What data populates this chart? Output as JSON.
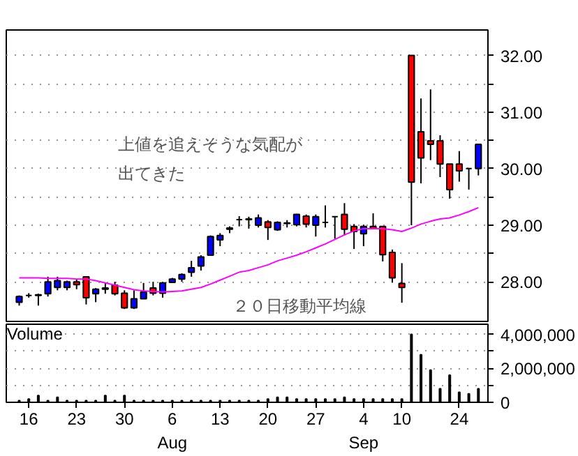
{
  "chart_data": [
    {
      "type": "candlestick",
      "categories": [
        null,
        null,
        null,
        null,
        null,
        null,
        null,
        null,
        null,
        null,
        null,
        null,
        null,
        null,
        null,
        null,
        null,
        null,
        null,
        null,
        null,
        null,
        null,
        null,
        null,
        null,
        null,
        null,
        null,
        null,
        null,
        null,
        null,
        null,
        null,
        null,
        null,
        null,
        null,
        null,
        null,
        null,
        null,
        null,
        null,
        null,
        null,
        null,
        null
      ],
      "ohlc": [
        [
          27.64,
          27.76,
          27.58,
          27.74
        ],
        [
          27.76,
          27.8,
          27.72,
          27.76
        ],
        [
          27.76,
          27.79,
          27.58,
          27.77
        ],
        [
          27.79,
          28.09,
          27.74,
          28.0
        ],
        [
          27.9,
          28.09,
          27.85,
          28.02
        ],
        [
          27.9,
          28.02,
          27.85,
          28.0
        ],
        [
          28.0,
          28.05,
          27.87,
          27.95
        ],
        [
          28.09,
          28.09,
          27.6,
          27.72
        ],
        [
          27.79,
          27.89,
          27.64,
          27.87
        ],
        [
          27.87,
          27.98,
          27.79,
          27.89
        ],
        [
          27.94,
          28.0,
          27.76,
          27.79
        ],
        [
          27.8,
          27.85,
          27.52,
          27.54
        ],
        [
          27.54,
          27.85,
          27.52,
          27.7
        ],
        [
          27.7,
          27.98,
          27.7,
          27.82
        ],
        [
          27.89,
          28.0,
          27.76,
          27.8
        ],
        [
          27.8,
          28.0,
          27.72,
          27.98
        ],
        [
          27.99,
          28.07,
          27.98,
          28.05
        ],
        [
          28.05,
          28.15,
          28.0,
          28.13
        ],
        [
          28.17,
          28.37,
          28.09,
          28.25
        ],
        [
          28.28,
          28.47,
          28.2,
          28.44
        ],
        [
          28.47,
          28.82,
          28.46,
          28.8
        ],
        [
          28.74,
          28.86,
          28.63,
          28.82
        ],
        [
          28.93,
          28.98,
          28.86,
          28.95
        ],
        [
          29.1,
          29.16,
          28.98,
          29.1
        ],
        [
          29.1,
          29.15,
          28.94,
          29.11
        ],
        [
          29.0,
          29.19,
          28.96,
          29.13
        ],
        [
          29.06,
          29.09,
          28.74,
          28.96
        ],
        [
          28.92,
          29.07,
          28.9,
          29.05
        ],
        [
          29.03,
          29.09,
          28.96,
          29.04
        ],
        [
          29.01,
          29.2,
          28.98,
          29.19
        ],
        [
          29.16,
          29.19,
          28.96,
          29.02
        ],
        [
          29.0,
          29.19,
          28.8,
          29.15
        ],
        [
          29.05,
          29.35,
          28.96,
          29.05
        ],
        [
          29.15,
          29.15,
          28.76,
          29.15
        ],
        [
          29.19,
          29.39,
          28.82,
          28.93
        ],
        [
          28.98,
          29.02,
          28.58,
          28.89
        ],
        [
          28.85,
          29.01,
          28.63,
          28.98
        ],
        [
          28.98,
          29.21,
          28.93,
          28.94
        ],
        [
          28.98,
          28.98,
          28.36,
          28.48
        ],
        [
          28.52,
          28.57,
          27.99,
          28.07
        ],
        [
          27.97,
          28.33,
          27.63,
          27.9
        ],
        [
          32.0,
          32.0,
          29.0,
          29.76
        ],
        [
          30.65,
          31.24,
          29.74,
          30.19
        ],
        [
          30.49,
          31.4,
          30.15,
          30.43
        ],
        [
          30.49,
          30.59,
          29.85,
          30.08
        ],
        [
          30.08,
          30.08,
          29.47,
          29.63
        ],
        [
          30.08,
          30.31,
          29.77,
          29.96
        ],
        [
          30.0,
          30.0,
          29.63,
          30.0
        ],
        [
          30.0,
          30.43,
          29.88,
          30.43
        ]
      ],
      "colors": [
        "#0000ff",
        "#000000",
        "#000000",
        "#0000ff",
        "#0000ff",
        "#0000ff",
        "#ff0000",
        "#ff0000",
        "#0000ff",
        "#0000ff",
        "#ff0000",
        "#ff0000",
        "#0000ff",
        "#0000ff",
        "#ff0000",
        "#0000ff",
        "#0000ff",
        "#0000ff",
        "#0000ff",
        "#0000ff",
        "#0000ff",
        "#0000ff",
        "#000000",
        "#000000",
        "#000000",
        "#0000ff",
        "#ff0000",
        "#0000ff",
        "#000000",
        "#0000ff",
        "#ff0000",
        "#0000ff",
        "#000000",
        "#000000",
        "#ff0000",
        "#ff0000",
        "#0000ff",
        "#ff0000",
        "#ff0000",
        "#ff0000",
        "#ff0000",
        "#ff0000",
        "#ff0000",
        "#ff0000",
        "#ff0000",
        "#ff0000",
        "#ff0000",
        "#000000",
        "#0000ff"
      ],
      "series": [
        {
          "type": "line",
          "name": "２０日移動平均線",
          "color": "#ff00ff",
          "values": [
            28.07,
            28.07,
            28.07,
            28.06,
            28.06,
            28.06,
            28.05,
            28.05,
            28.02,
            27.98,
            27.94,
            27.9,
            27.86,
            27.84,
            27.83,
            27.82,
            27.83,
            27.84,
            27.87,
            27.9,
            27.96,
            28.03,
            28.1,
            28.17,
            28.2,
            28.25,
            28.3,
            28.37,
            28.42,
            28.47,
            28.53,
            28.6,
            28.67,
            28.75,
            28.83,
            28.9,
            28.94,
            28.94,
            28.94,
            28.92,
            28.89,
            28.95,
            29.02,
            29.07,
            29.11,
            29.13,
            29.18,
            29.24,
            29.31
          ]
        }
      ],
      "ylim": [
        27.3,
        32.45
      ],
      "yticks": [
        {
          "value": 28,
          "label": "28.00"
        },
        {
          "value": 28.5,
          "label": null
        },
        {
          "value": 29,
          "label": "29.00"
        },
        {
          "value": 29.5,
          "label": null
        },
        {
          "value": 30,
          "label": "30.00"
        },
        {
          "value": 30.5,
          "label": null
        },
        {
          "value": 31,
          "label": "31.00"
        },
        {
          "value": 31.5,
          "label": null
        },
        {
          "value": 32,
          "label": "32.00"
        }
      ],
      "tick_labels": "y",
      "grid": "y",
      "annotations": [
        "上値を追えそうな気配が",
        "出てきた"
      ]
    },
    {
      "type": "bar",
      "title": "Volume",
      "categories": [
        null,
        "16",
        null,
        null,
        null,
        null,
        "23",
        null,
        null,
        null,
        null,
        "30",
        null,
        null,
        null,
        null,
        "6\nAug",
        null,
        null,
        null,
        null,
        "13",
        null,
        null,
        null,
        null,
        "20",
        null,
        null,
        null,
        null,
        "27",
        null,
        null,
        null,
        null,
        "4\nSep",
        null,
        null,
        null,
        "10",
        null,
        null,
        null,
        null,
        null,
        "24",
        null,
        null
      ],
      "values": [
        100000,
        200000,
        400000,
        100000,
        300000,
        100000,
        100000,
        100000,
        100000,
        400000,
        100000,
        400000,
        100000,
        100000,
        100000,
        100000,
        100000,
        100000,
        100000,
        100000,
        100000,
        100000,
        100000,
        100000,
        100000,
        100000,
        200000,
        300000,
        300000,
        200000,
        200000,
        200000,
        200000,
        200000,
        300000,
        200000,
        200000,
        200000,
        200000,
        200000,
        200000,
        4000000,
        2800000,
        1900000,
        800000,
        1600000,
        600000,
        500000,
        800000
      ],
      "color": "#000000",
      "ylim": [
        0,
        4600000
      ],
      "yticks": [
        {
          "value": 0,
          "label": "0"
        },
        {
          "value": 1000000,
          "label": null
        },
        {
          "value": 2000000,
          "label": "2,000,000"
        },
        {
          "value": 3000000,
          "label": null
        },
        {
          "value": 4000000,
          "label": "4,000,000"
        }
      ],
      "grid": "y"
    }
  ]
}
